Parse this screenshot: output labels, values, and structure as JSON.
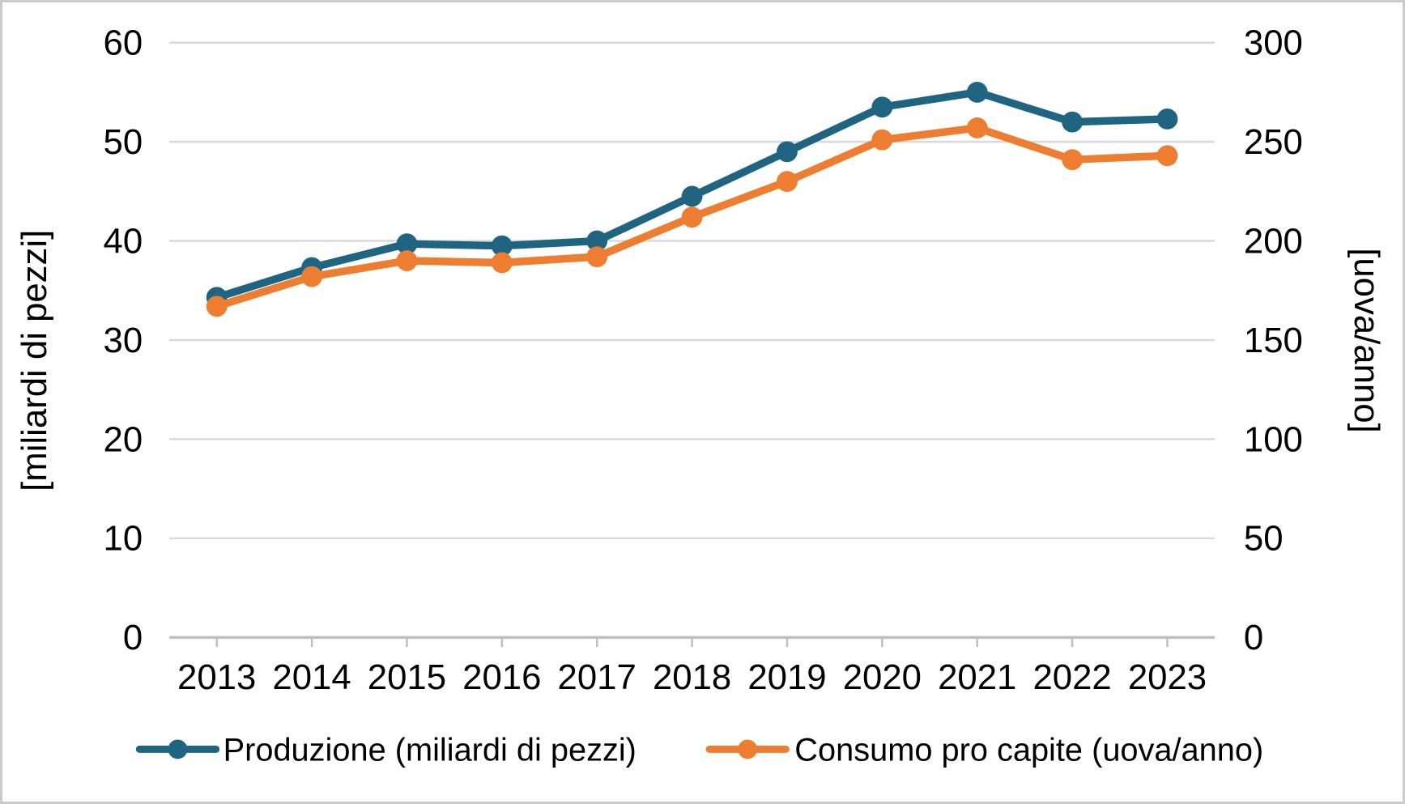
{
  "chart_data": {
    "type": "line",
    "title": "",
    "categories": [
      "2013",
      "2014",
      "2015",
      "2016",
      "2017",
      "2018",
      "2019",
      "2020",
      "2021",
      "2022",
      "2023"
    ],
    "series": [
      {
        "name": "Produzione (miliardi di pezzi)",
        "axis": "left",
        "color": "#1f6480",
        "marker": "circle",
        "values": [
          34.3,
          37.3,
          39.7,
          39.5,
          40.0,
          44.5,
          49.0,
          53.5,
          55.0,
          52.0,
          52.3
        ]
      },
      {
        "name": "Consumo pro capite (uova/anno)",
        "axis": "right",
        "color": "#ed7d31",
        "marker": "circle",
        "values": [
          167,
          182,
          190,
          189,
          192,
          212,
          230,
          251,
          257,
          241,
          243
        ]
      }
    ],
    "left_axis": {
      "label": "[miliardi di pezzi]",
      "min": 0,
      "max": 60,
      "ticks": [
        0,
        10,
        20,
        30,
        40,
        50,
        60
      ]
    },
    "right_axis": {
      "label": "[uova/anno]",
      "min": 0,
      "max": 300,
      "ticks": [
        0,
        50,
        100,
        150,
        200,
        250,
        300
      ]
    },
    "grid": true,
    "legend_position": "bottom",
    "colors": {
      "gridline": "#d9d9d9",
      "axis_line": "#bfbfbf",
      "text": "#000000",
      "background": "#ffffff",
      "frame": "#cbcbcb"
    }
  }
}
